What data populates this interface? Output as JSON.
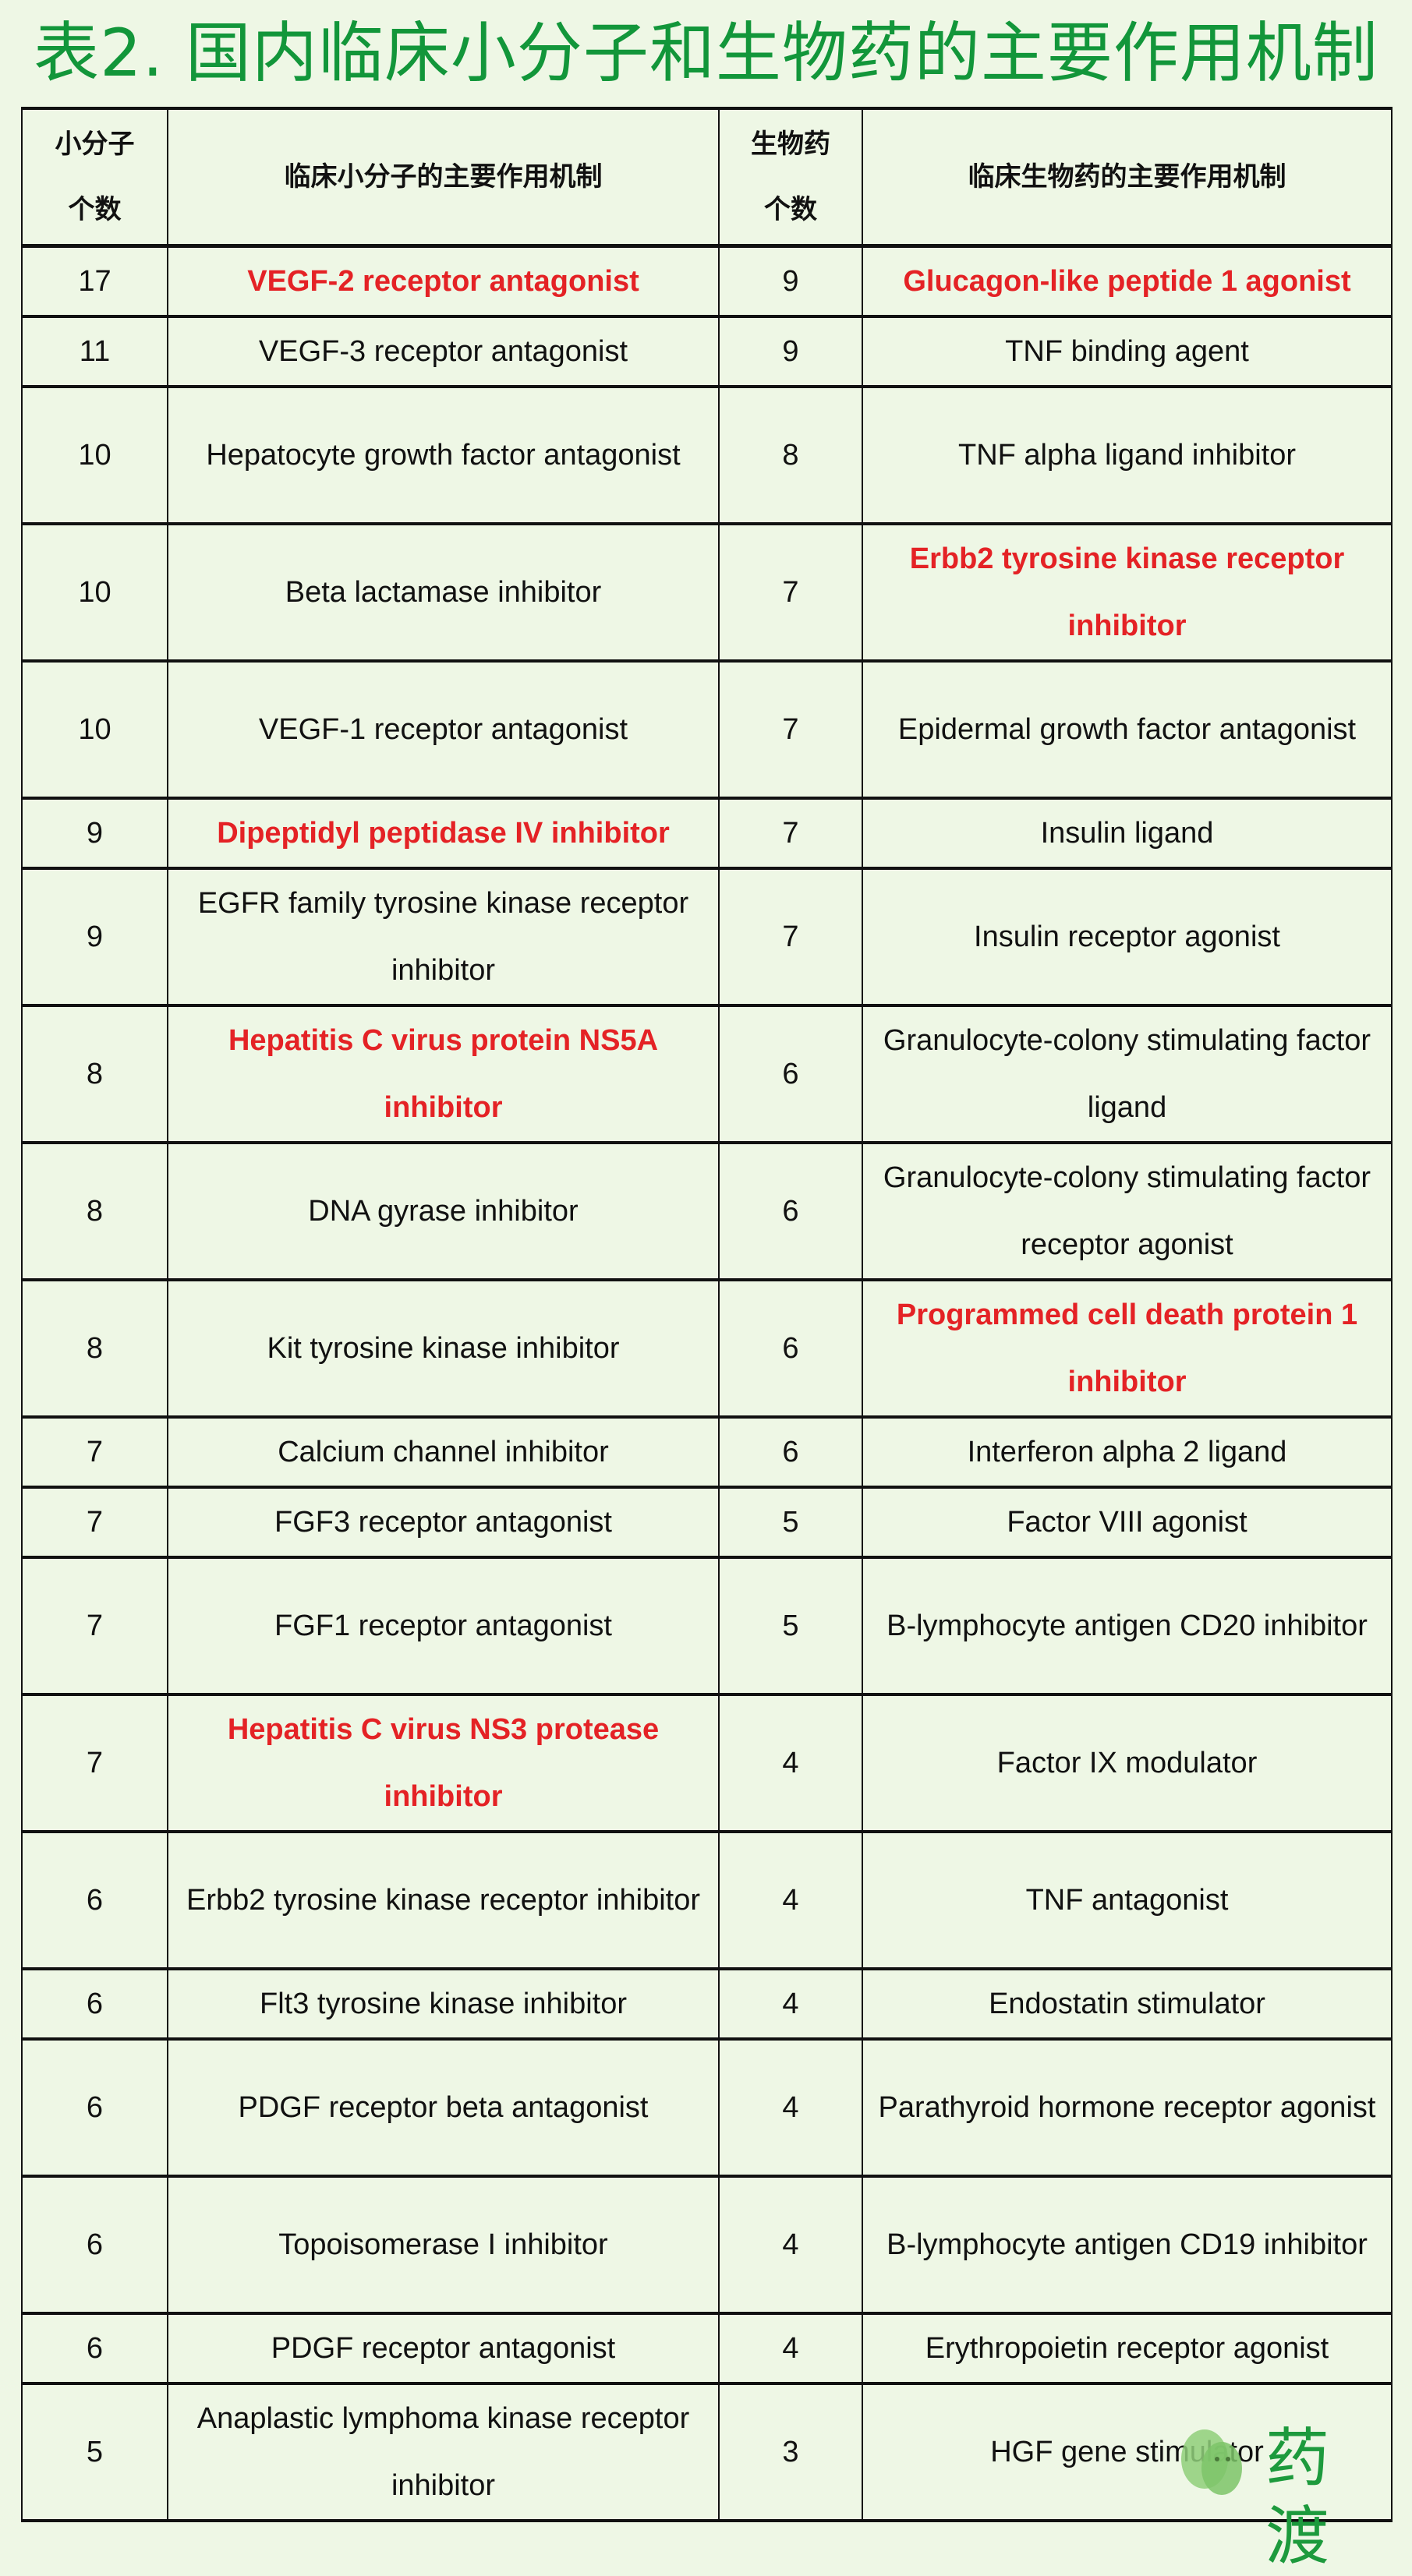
{
  "title": "表2. 国内临床小分子和生物药的主要作用机制",
  "colors": {
    "title": "#12963a",
    "highlight": "#e42225",
    "background": "#eef7e5"
  },
  "table": {
    "headers": [
      "小分子个数",
      "临床小分子的主要作用机制",
      "生物药个数",
      "临床生物药的主要作用机制"
    ],
    "rows": [
      {
        "sm_count": "17",
        "sm_mech": "VEGF-2 receptor antagonist",
        "sm_hl": true,
        "bio_count": "9",
        "bio_mech": "Glucagon-like peptide 1 agonist",
        "bio_hl": true,
        "lines": 1
      },
      {
        "sm_count": "11",
        "sm_mech": "VEGF-3 receptor antagonist",
        "sm_hl": false,
        "bio_count": "9",
        "bio_mech": "TNF binding agent",
        "bio_hl": false,
        "lines": 1
      },
      {
        "sm_count": "10",
        "sm_mech": "Hepatocyte growth factor antagonist",
        "sm_hl": false,
        "bio_count": "8",
        "bio_mech": "TNF alpha ligand inhibitor",
        "bio_hl": false,
        "lines": 2
      },
      {
        "sm_count": "10",
        "sm_mech": "Beta lactamase inhibitor",
        "sm_hl": false,
        "bio_count": "7",
        "bio_mech": "Erbb2 tyrosine kinase receptor inhibitor",
        "bio_hl": true,
        "lines": 2
      },
      {
        "sm_count": "10",
        "sm_mech": "VEGF-1 receptor antagonist",
        "sm_hl": false,
        "bio_count": "7",
        "bio_mech": "Epidermal growth factor antagonist",
        "bio_hl": false,
        "lines": 2
      },
      {
        "sm_count": "9",
        "sm_mech": "Dipeptidyl peptidase IV inhibitor",
        "sm_hl": true,
        "bio_count": "7",
        "bio_mech": "Insulin ligand",
        "bio_hl": false,
        "lines": 1
      },
      {
        "sm_count": "9",
        "sm_mech": "EGFR family tyrosine kinase receptor inhibitor",
        "sm_hl": false,
        "bio_count": "7",
        "bio_mech": "Insulin receptor agonist",
        "bio_hl": false,
        "lines": 2
      },
      {
        "sm_count": "8",
        "sm_mech": "Hepatitis C virus protein NS5A inhibitor",
        "sm_hl": true,
        "bio_count": "6",
        "bio_mech": "Granulocyte-colony stimulating factor ligand",
        "bio_hl": false,
        "lines": 2
      },
      {
        "sm_count": "8",
        "sm_mech": "DNA gyrase inhibitor",
        "sm_hl": false,
        "bio_count": "6",
        "bio_mech": "Granulocyte-colony stimulating factor receptor agonist",
        "bio_hl": false,
        "lines": 2
      },
      {
        "sm_count": "8",
        "sm_mech": "Kit tyrosine kinase inhibitor",
        "sm_hl": false,
        "bio_count": "6",
        "bio_mech": "Programmed cell death protein 1 inhibitor",
        "bio_hl": true,
        "lines": 2
      },
      {
        "sm_count": "7",
        "sm_mech": "Calcium channel inhibitor",
        "sm_hl": false,
        "bio_count": "6",
        "bio_mech": "Interferon alpha 2 ligand",
        "bio_hl": false,
        "lines": 1
      },
      {
        "sm_count": "7",
        "sm_mech": "FGF3 receptor antagonist",
        "sm_hl": false,
        "bio_count": "5",
        "bio_mech": "Factor VIII agonist",
        "bio_hl": false,
        "lines": 1
      },
      {
        "sm_count": "7",
        "sm_mech": "FGF1 receptor antagonist",
        "sm_hl": false,
        "bio_count": "5",
        "bio_mech": "B-lymphocyte antigen CD20 inhibitor",
        "bio_hl": false,
        "lines": 2
      },
      {
        "sm_count": "7",
        "sm_mech": "Hepatitis C virus NS3 protease inhibitor",
        "sm_hl": true,
        "bio_count": "4",
        "bio_mech": "Factor IX modulator",
        "bio_hl": false,
        "lines": 2
      },
      {
        "sm_count": "6",
        "sm_mech": "Erbb2 tyrosine kinase receptor inhibitor",
        "sm_hl": false,
        "bio_count": "4",
        "bio_mech": "TNF antagonist",
        "bio_hl": false,
        "lines": 2
      },
      {
        "sm_count": "6",
        "sm_mech": "Flt3 tyrosine kinase inhibitor",
        "sm_hl": false,
        "bio_count": "4",
        "bio_mech": "Endostatin stimulator",
        "bio_hl": false,
        "lines": 1
      },
      {
        "sm_count": "6",
        "sm_mech": "PDGF receptor beta antagonist",
        "sm_hl": false,
        "bio_count": "4",
        "bio_mech": "Parathyroid hormone receptor agonist",
        "bio_hl": false,
        "lines": 2
      },
      {
        "sm_count": "6",
        "sm_mech": "Topoisomerase I inhibitor",
        "sm_hl": false,
        "bio_count": "4",
        "bio_mech": "B-lymphocyte antigen CD19 inhibitor",
        "bio_hl": false,
        "lines": 2
      },
      {
        "sm_count": "6",
        "sm_mech": "PDGF receptor antagonist",
        "sm_hl": false,
        "bio_count": "4",
        "bio_mech": "Erythropoietin receptor agonist",
        "bio_hl": false,
        "lines": 1
      },
      {
        "sm_count": "5",
        "sm_mech": "Anaplastic lymphoma kinase receptor inhibitor",
        "sm_hl": false,
        "bio_count": "3",
        "bio_mech": "HGF gene stimulator",
        "bio_hl": false,
        "lines": 2
      }
    ]
  },
  "watermark": {
    "text": "药渡",
    "icon": "wechat-icon"
  }
}
